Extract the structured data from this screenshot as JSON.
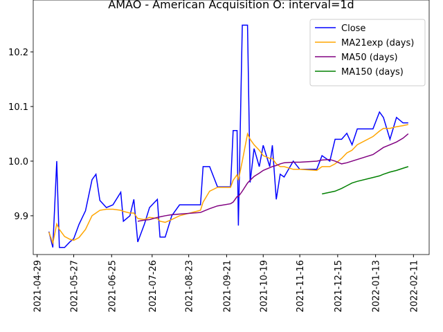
{
  "chart_data": {
    "type": "line",
    "title": "AMAO - American Acquisition O: interval=1d",
    "x": [
      "2021-05-08",
      "2021-05-11",
      "2021-05-14",
      "2021-05-16",
      "2021-05-20",
      "2021-05-24",
      "2021-05-27",
      "2021-05-31",
      "2021-06-05",
      "2021-06-10",
      "2021-06-13",
      "2021-06-16",
      "2021-06-21",
      "2021-06-26",
      "2021-07-02",
      "2021-07-04",
      "2021-07-09",
      "2021-07-12",
      "2021-07-15",
      "2021-07-20",
      "2021-07-24",
      "2021-07-30",
      "2021-08-01",
      "2021-08-05",
      "2021-08-10",
      "2021-08-16",
      "2021-09-01",
      "2021-09-03",
      "2021-09-08",
      "2021-09-14",
      "2021-09-24",
      "2021-09-26",
      "2021-09-29",
      "2021-09-30",
      "2021-10-03",
      "2021-10-07",
      "2021-10-09",
      "2021-10-12",
      "2021-10-16",
      "2021-10-19",
      "2021-10-24",
      "2021-10-26",
      "2021-10-29",
      "2021-11-01",
      "2021-11-04",
      "2021-11-11",
      "2021-11-16",
      "2021-11-29",
      "2021-12-03",
      "2021-12-09",
      "2021-12-13",
      "2021-12-18",
      "2021-12-22",
      "2021-12-26",
      "2021-12-30",
      "2022-01-11",
      "2022-01-16",
      "2022-01-19",
      "2022-01-24",
      "2022-01-29",
      "2022-02-03",
      "2022-02-07"
    ],
    "series": [
      {
        "name": "Close",
        "color": "#0000ff",
        "values": [
          9.871,
          9.842,
          10.0,
          9.842,
          9.842,
          9.852,
          9.858,
          9.884,
          9.909,
          9.966,
          9.976,
          9.928,
          9.915,
          9.92,
          9.943,
          9.89,
          9.9,
          9.93,
          9.852,
          9.884,
          9.915,
          9.93,
          9.861,
          9.861,
          9.9,
          9.92,
          9.92,
          9.99,
          9.99,
          9.953,
          9.953,
          10.056,
          10.056,
          9.882,
          10.249,
          10.249,
          9.961,
          10.023,
          9.99,
          10.029,
          9.99,
          10.029,
          9.93,
          9.976,
          9.971,
          10.0,
          9.985,
          9.985,
          10.01,
          10.0,
          10.04,
          10.04,
          10.051,
          10.03,
          10.059,
          10.059,
          10.09,
          10.08,
          10.04,
          10.08,
          10.07,
          10.07
        ]
      },
      {
        "name": "MA21exp (days)",
        "color": "#ffa500",
        "values": [
          9.87,
          9.85,
          9.885,
          9.875,
          9.862,
          9.857,
          9.855,
          9.86,
          9.875,
          9.9,
          9.905,
          9.91,
          9.912,
          9.912,
          9.91,
          9.908,
          9.905,
          9.905,
          9.895,
          9.893,
          9.897,
          9.895,
          9.89,
          9.888,
          9.893,
          9.9,
          9.91,
          9.925,
          9.945,
          9.952,
          9.952,
          9.965,
          9.975,
          9.965,
          10.0,
          10.05,
          10.04,
          10.03,
          10.02,
          10.01,
          10.005,
          10.005,
          9.995,
          9.99,
          9.99,
          9.985,
          9.985,
          9.983,
          9.99,
          9.99,
          9.995,
          10.005,
          10.015,
          10.02,
          10.03,
          10.045,
          10.055,
          10.06,
          10.06,
          10.063,
          10.065,
          10.067
        ]
      },
      {
        "name": "MA50 (days)",
        "color": "#800080",
        "values": [
          null,
          null,
          null,
          null,
          null,
          null,
          null,
          null,
          null,
          null,
          null,
          null,
          null,
          null,
          null,
          null,
          null,
          null,
          9.89,
          9.892,
          9.893,
          9.897,
          9.898,
          9.9,
          9.902,
          9.903,
          9.906,
          9.908,
          9.913,
          9.918,
          9.922,
          9.925,
          9.935,
          9.935,
          9.945,
          9.96,
          9.965,
          9.972,
          9.978,
          9.983,
          9.988,
          9.99,
          9.992,
          9.995,
          9.997,
          9.998,
          9.998,
          10.0,
          10.002,
          10.003,
          10.0,
          9.995,
          9.997,
          10.0,
          10.003,
          10.012,
          10.02,
          10.025,
          10.03,
          10.035,
          10.042,
          10.05
        ]
      },
      {
        "name": "MA150 (days)",
        "color": "#008000",
        "values": [
          null,
          null,
          null,
          null,
          null,
          null,
          null,
          null,
          null,
          null,
          null,
          null,
          null,
          null,
          null,
          null,
          null,
          null,
          null,
          null,
          null,
          null,
          null,
          null,
          null,
          null,
          null,
          null,
          null,
          null,
          null,
          null,
          null,
          null,
          null,
          null,
          null,
          null,
          null,
          null,
          null,
          null,
          null,
          null,
          null,
          null,
          null,
          null,
          9.94,
          9.943,
          9.945,
          9.95,
          9.955,
          9.96,
          9.963,
          9.97,
          9.973,
          9.976,
          9.98,
          9.983,
          9.987,
          9.99
        ]
      }
    ],
    "xlim": [
      "2021-04-26",
      "2022-02-23"
    ],
    "xticks": [
      "2021-04-29",
      "2021-05-27",
      "2021-06-25",
      "2021-07-26",
      "2021-08-23",
      "2021-09-21",
      "2021-10-19",
      "2021-11-16",
      "2021-12-15",
      "2022-01-13",
      "2022-02-11"
    ],
    "ylim": [
      9.829,
      10.295
    ],
    "yticks": [
      9.9,
      {
        "value": 10,
        "label": "10.0"
      },
      10.1,
      10.2
    ],
    "legend": "upper right"
  }
}
